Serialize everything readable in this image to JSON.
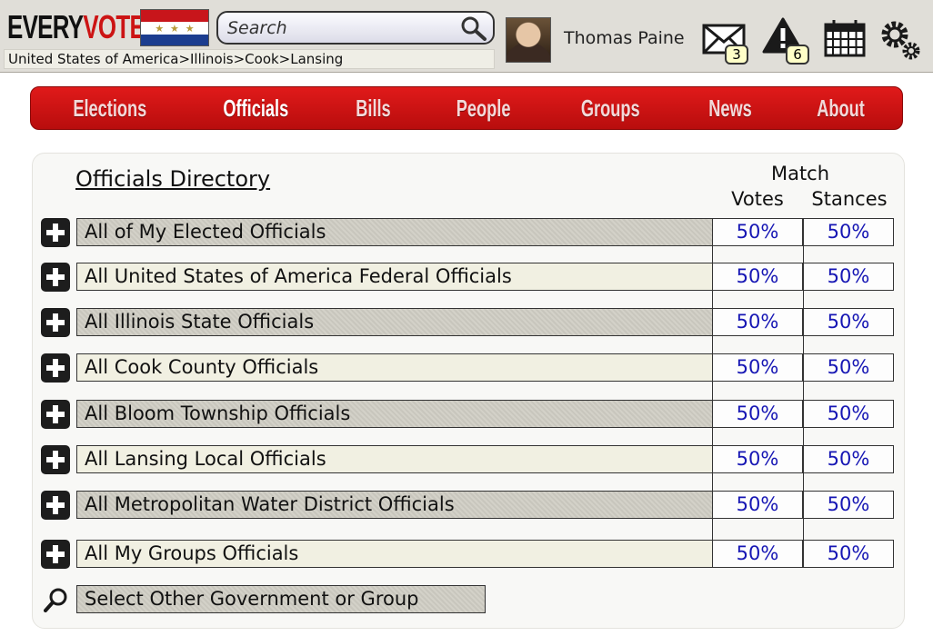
{
  "header": {
    "logo_every": "EVERY",
    "logo_vote": "VOTE",
    "search_placeholder": "Search",
    "breadcrumb": "United States of America>Illinois>Cook>Lansing",
    "username": "Thomas Paine",
    "messages_count": "3",
    "alerts_count": "6",
    "icons": [
      "envelope-icon",
      "alert-icon",
      "calendar-icon",
      "gear-icon",
      "search-icon"
    ]
  },
  "nav": {
    "items": [
      "Elections",
      "Officials",
      "Bills",
      "People",
      "Groups",
      "News",
      "About"
    ],
    "active": "Officials"
  },
  "directory": {
    "title": "Officials Directory",
    "col_match": "Match",
    "col_votes": "Votes",
    "col_stances": "Stances",
    "rows": [
      {
        "label": "All of My Elected Officials",
        "votes": "50%",
        "stances": "50%"
      },
      {
        "label": "All United States of America Federal Officials",
        "votes": "50%",
        "stances": "50%"
      },
      {
        "label": "All Illinois State Officials",
        "votes": "50%",
        "stances": "50%"
      },
      {
        "label": "All Cook County Officials",
        "votes": "50%",
        "stances": "50%"
      },
      {
        "label": "All Bloom Township Officials",
        "votes": "50%",
        "stances": "50%"
      },
      {
        "label": "All Lansing Local Officials",
        "votes": "50%",
        "stances": "50%"
      },
      {
        "label": "All Metropolitan Water District Officials",
        "votes": "50%",
        "stances": "50%"
      },
      {
        "label": "All My Groups Officials",
        "votes": "50%",
        "stances": "50%"
      }
    ],
    "select_other": "Select Other Government or Group"
  },
  "colors": {
    "nav_red": "#cc1414",
    "percent_blue": "#1616b4",
    "logo_red": "#cc1414"
  }
}
